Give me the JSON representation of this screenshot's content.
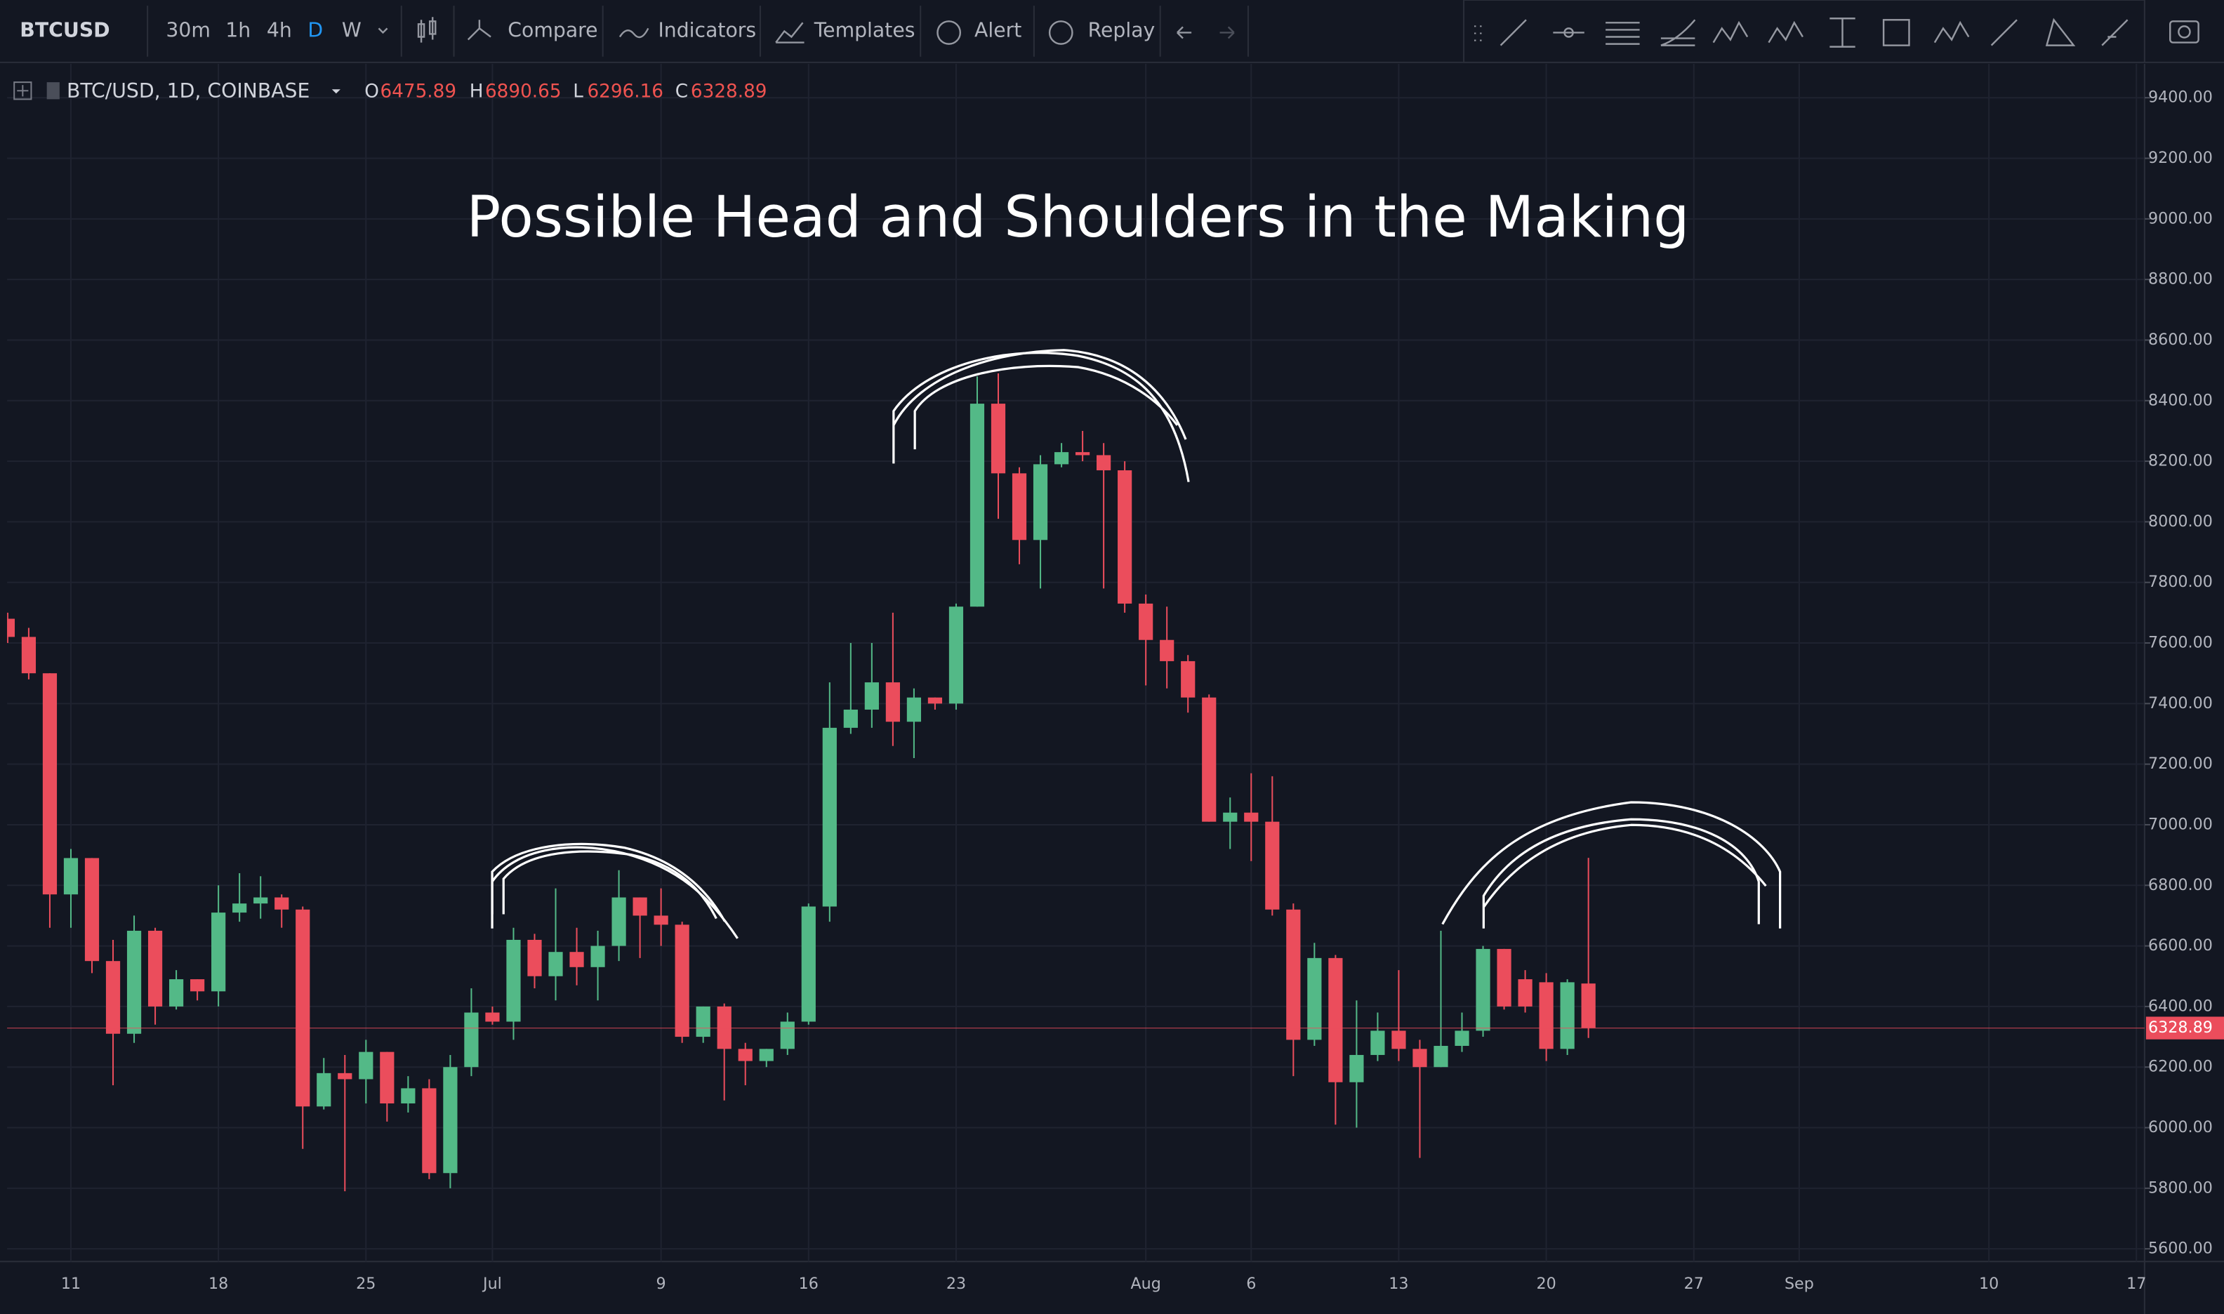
{
  "toolbar": {
    "symbol": "BTCUSD",
    "intervals": [
      "30m",
      "1h",
      "4h",
      "D",
      "W"
    ],
    "buttons": [
      "Compare",
      "Indicators",
      "Templates",
      "Alert",
      "Replay"
    ]
  },
  "header": {
    "symbol": "BTC/USD, 1D, COINBASE",
    "labels": [
      "O",
      "H",
      "L",
      "C"
    ]
  },
  "chart_data": {
    "type": "candlestick",
    "title": "Possible Head and Shoulders in the Making",
    "categories": [
      null,
      null,
      null,
      "11",
      null,
      null,
      null,
      null,
      null,
      null,
      "18",
      null,
      null,
      null,
      null,
      null,
      null,
      "25",
      null,
      null,
      null,
      null,
      null,
      "Jul",
      null,
      null,
      null,
      null,
      null,
      null,
      null,
      "9",
      null,
      null,
      null,
      null,
      null,
      null,
      "16",
      null,
      null,
      null,
      null,
      null,
      null,
      "23",
      null,
      null,
      null,
      null,
      null,
      null,
      null,
      null,
      "Aug",
      null,
      null,
      null,
      null,
      "6",
      null,
      null,
      null,
      null,
      null,
      null,
      "13",
      null,
      null,
      null,
      null,
      null,
      null,
      "20",
      null,
      null,
      null,
      null,
      null,
      null,
      "27",
      null,
      null,
      null,
      null,
      "Sep",
      null,
      null,
      null,
      null,
      null,
      null,
      null,
      null,
      "10",
      null,
      null,
      null,
      null,
      null,
      null,
      "17"
    ],
    "open": {
      "values": [
        7680,
        7620,
        7500,
        6770,
        6890,
        6550,
        6310,
        6650,
        6400,
        6490,
        6450,
        6710,
        6740,
        6760,
        6720,
        6070,
        6180,
        6160,
        6250,
        6080,
        6130,
        5850,
        6200,
        6380,
        6350,
        6620,
        6500,
        6580,
        6530,
        6600,
        6760,
        6700,
        6670,
        6300,
        6400,
        6260,
        6220,
        6260,
        6350,
        6730,
        7320,
        7380,
        7470,
        7340,
        7420,
        7400,
        7720,
        8390,
        8160,
        7940,
        8190,
        8230,
        8220,
        8170,
        7730,
        7610,
        7540,
        7420,
        7010,
        7040,
        7010,
        6720,
        6290,
        6560,
        6150,
        6240,
        6320,
        6260,
        6200,
        6270,
        6320,
        6590,
        6490,
        6480,
        6260,
        6475.89,
        null,
        null,
        null,
        null,
        null,
        null,
        null,
        null,
        null,
        null,
        null,
        null,
        null,
        null,
        null,
        null,
        null,
        null,
        null,
        null,
        null,
        null,
        null,
        null,
        null,
        null
      ]
    },
    "high": {
      "values": [
        7700,
        7650,
        7500,
        6920,
        6890,
        6620,
        6700,
        6660,
        6520,
        6490,
        6800,
        6840,
        6830,
        6770,
        6730,
        6230,
        6240,
        6290,
        6250,
        6170,
        6160,
        6240,
        6460,
        6400,
        6660,
        6640,
        6790,
        6660,
        6650,
        6850,
        6760,
        6790,
        6680,
        6400,
        6410,
        6280,
        6260,
        6380,
        6740,
        7470,
        7600,
        7600,
        7700,
        7450,
        7420,
        7730,
        8480,
        8490,
        8180,
        8220,
        8260,
        8300,
        8260,
        8200,
        7760,
        7720,
        7560,
        7430,
        7090,
        7170,
        7160,
        6740,
        6610,
        6570,
        6420,
        6380,
        6520,
        6290,
        6650,
        6380,
        6600,
        6590,
        6520,
        6510,
        6490,
        6890.65,
        null,
        null,
        null,
        null,
        null,
        null,
        null,
        null,
        null,
        null,
        null,
        null,
        null,
        null,
        null,
        null,
        null,
        null,
        null,
        null,
        null,
        null,
        null,
        null,
        null,
        null
      ]
    },
    "low": {
      "values": [
        7600,
        7480,
        6660,
        6660,
        6510,
        6140,
        6280,
        6340,
        6390,
        6420,
        6400,
        6680,
        6690,
        6660,
        5930,
        6060,
        5790,
        6080,
        6020,
        6050,
        5830,
        5800,
        6170,
        6340,
        6290,
        6460,
        6420,
        6470,
        6420,
        6550,
        6560,
        6600,
        6280,
        6280,
        6090,
        6140,
        6200,
        6240,
        6340,
        6680,
        7300,
        7320,
        7260,
        7220,
        7380,
        7380,
        7720,
        8010,
        7860,
        7780,
        8180,
        8200,
        7780,
        7700,
        7460,
        7450,
        7370,
        7010,
        6920,
        6880,
        6700,
        6170,
        6270,
        6010,
        6000,
        6220,
        6220,
        5900,
        6200,
        6250,
        6300,
        6390,
        6380,
        6220,
        6240,
        6296.16,
        null,
        null,
        null,
        null,
        null,
        null,
        null,
        null,
        null,
        null,
        null,
        null,
        null,
        null,
        null,
        null,
        null,
        null,
        null,
        null,
        null,
        null,
        null,
        null,
        null,
        null
      ]
    },
    "close": {
      "values": [
        7620,
        7500,
        6770,
        6890,
        6550,
        6310,
        6650,
        6400,
        6490,
        6450,
        6710,
        6740,
        6760,
        6720,
        6070,
        6180,
        6160,
        6250,
        6080,
        6130,
        5850,
        6200,
        6380,
        6350,
        6620,
        6500,
        6580,
        6530,
        6600,
        6760,
        6700,
        6670,
        6300,
        6400,
        6260,
        6220,
        6260,
        6350,
        6730,
        7320,
        7380,
        7470,
        7340,
        7420,
        7400,
        7720,
        8390,
        8160,
        7940,
        8190,
        8230,
        8220,
        8170,
        7730,
        7610,
        7540,
        7420,
        7010,
        7040,
        7010,
        6720,
        6290,
        6560,
        6150,
        6240,
        6320,
        6260,
        6200,
        6270,
        6320,
        6590,
        6400,
        6400,
        6260,
        6480,
        6328.89,
        null,
        null,
        null,
        null,
        null,
        null,
        null,
        null,
        null,
        null,
        null,
        null,
        null,
        null,
        null,
        null,
        null,
        null,
        null,
        null,
        null,
        null,
        null,
        null,
        null,
        null
      ]
    },
    "up_color": "#53b987",
    "down_color": "#eb4d5c",
    "ylim": [
      5558,
      9512
    ],
    "yticks": [
      {
        "value": 5600,
        "label": "5600.00"
      },
      {
        "value": 5800,
        "label": "5800.00"
      },
      {
        "value": 6000,
        "label": "6000.00"
      },
      {
        "value": 6200,
        "label": "6200.00"
      },
      {
        "value": 6400,
        "label": "6400.00"
      },
      {
        "value": 6600,
        "label": "6600.00"
      },
      {
        "value": 6800,
        "label": "6800.00"
      },
      {
        "value": 7000,
        "label": "7000.00"
      },
      {
        "value": 7200,
        "label": "7200.00"
      },
      {
        "value": 7400,
        "label": "7400.00"
      },
      {
        "value": 7600,
        "label": "7600.00"
      },
      {
        "value": 7800,
        "label": "7800.00"
      },
      {
        "value": 8000,
        "label": "8000.00"
      },
      {
        "value": 8200,
        "label": "8200.00"
      },
      {
        "value": 8400,
        "label": "8400.00"
      },
      {
        "value": 8600,
        "label": "8600.00"
      },
      {
        "value": 8800,
        "label": "8800.00"
      },
      {
        "value": 9000,
        "label": "9000.00"
      },
      {
        "value": 9200,
        "label": "9200.00"
      },
      {
        "value": 9400,
        "label": "9400.00"
      }
    ],
    "grid": true
  }
}
